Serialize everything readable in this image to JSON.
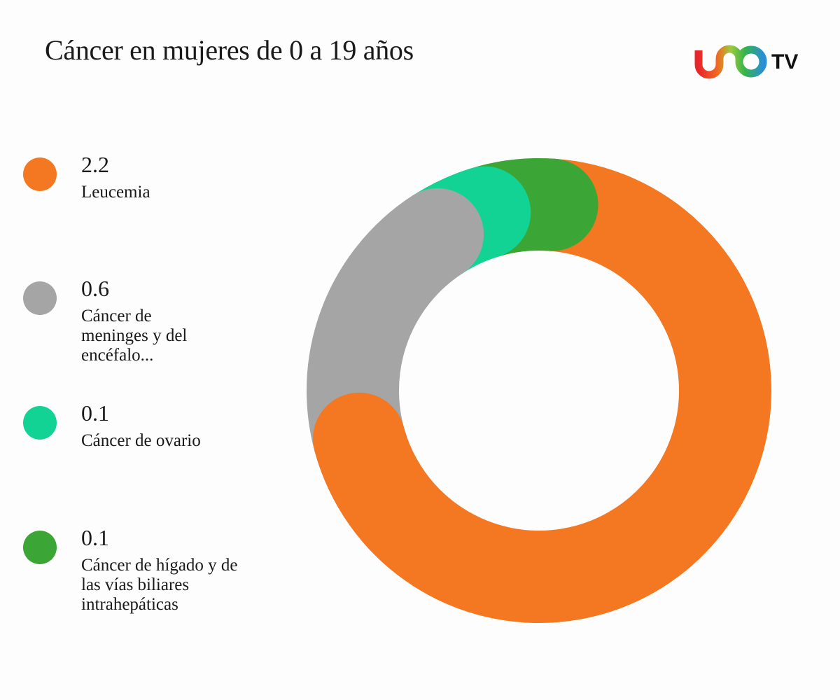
{
  "title": "Cáncer en mujeres de 0 a 19 años",
  "logo": {
    "text_uno": "UNO",
    "text_tv": "TV",
    "icon": "unotv-logo"
  },
  "legend": [
    {
      "value": "2.2",
      "label": "Leucemia",
      "color": "#F47721"
    },
    {
      "value": "0.6",
      "label": "Cáncer de meninges y del encéfalo...",
      "color": "#A6A5A6"
    },
    {
      "value": "0.1",
      "label": "Cáncer de ovario",
      "color": "#12D394"
    },
    {
      "value": "0.1",
      "label": "Cáncer de hígado y de las vías biliares intrahepáticas",
      "color": "#3BA635"
    }
  ],
  "chart_data": {
    "type": "pie",
    "subtype": "donut",
    "title": "Cáncer en mujeres de 0 a 19 años",
    "categories": [
      "Leucemia",
      "Cáncer de meninges y del encéfalo...",
      "Cáncer de ovario",
      "Cáncer de hígado y de las vías biliares intrahepáticas"
    ],
    "values": [
      2.2,
      0.6,
      0.1,
      0.1
    ],
    "colors": [
      "#F47721",
      "#A6A5A6",
      "#12D394",
      "#3BA635"
    ],
    "legend_position": "left"
  }
}
